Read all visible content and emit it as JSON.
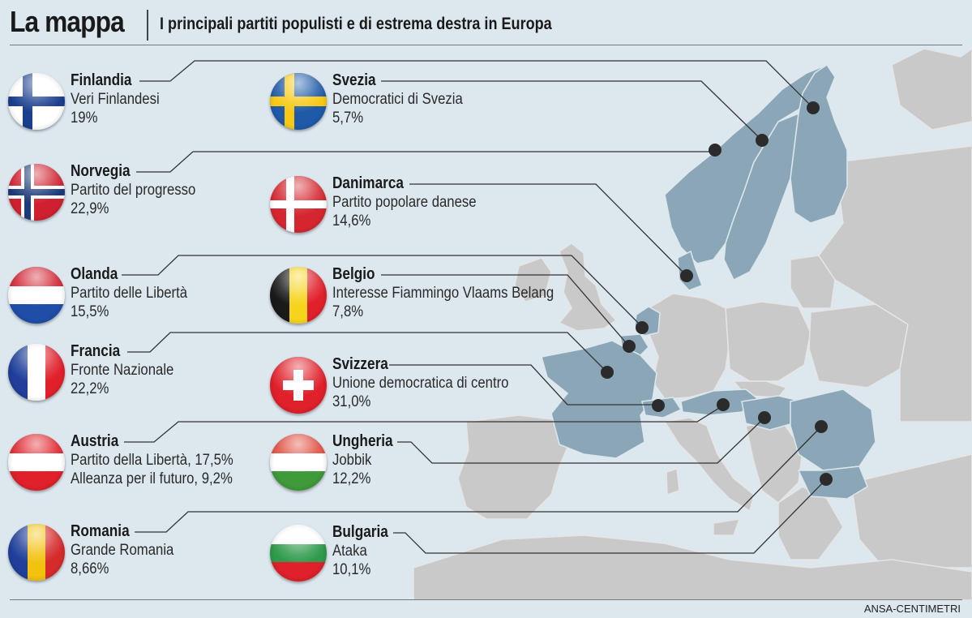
{
  "header": {
    "title": "La mappa",
    "subtitle": "I principali partiti populisti e di estrema destra in Europa"
  },
  "footer": {
    "credit": "ANSA-CENTIMETRI"
  },
  "colors": {
    "background": "#dce7ee",
    "highlighted_country": "#8ba6b6",
    "other_land": "#c9c9c9",
    "marker": "#2b2b2b"
  },
  "entries": [
    {
      "id": "finlandia",
      "country": "Finlandia",
      "party": "Veri Finlandesi",
      "pct": "19%",
      "flag": "finland-flag"
    },
    {
      "id": "svezia",
      "country": "Svezia",
      "party": "Democratici di Svezia",
      "pct": "5,7%",
      "flag": "sweden-flag"
    },
    {
      "id": "norvegia",
      "country": "Norvegia",
      "party": "Partito del progresso",
      "pct": "22,9%",
      "flag": "norway-flag"
    },
    {
      "id": "danimarca",
      "country": "Danimarca",
      "party": "Partito popolare danese",
      "pct": "14,6%",
      "flag": "denmark-flag"
    },
    {
      "id": "olanda",
      "country": "Olanda",
      "party": "Partito delle Libertà",
      "pct": "15,5%",
      "flag": "netherlands-flag"
    },
    {
      "id": "belgio",
      "country": "Belgio",
      "party": "Interesse Fiammingo Vlaams Belang",
      "pct": "7,8%",
      "flag": "belgium-flag"
    },
    {
      "id": "francia",
      "country": "Francia",
      "party": "Fronte Nazionale",
      "pct": "22,2%",
      "flag": "france-flag"
    },
    {
      "id": "svizzera",
      "country": "Svizzera",
      "party": "Unione democratica di centro",
      "pct": "31,0%",
      "flag": "switzerland-flag"
    },
    {
      "id": "austria",
      "country": "Austria",
      "party": "Partito della Libertà, 17,5%",
      "party2": "Alleanza per il futuro, 9,2%",
      "flag": "austria-flag"
    },
    {
      "id": "ungheria",
      "country": "Ungheria",
      "party": "Jobbik",
      "pct": "12,2%",
      "flag": "hungary-flag"
    },
    {
      "id": "romania",
      "country": "Romania",
      "party": "Grande Romania",
      "pct": "8,66%",
      "flag": "romania-flag"
    },
    {
      "id": "bulgaria",
      "country": "Bulgaria",
      "party": "Ataka",
      "pct": "10,1%",
      "flag": "bulgaria-flag"
    }
  ]
}
